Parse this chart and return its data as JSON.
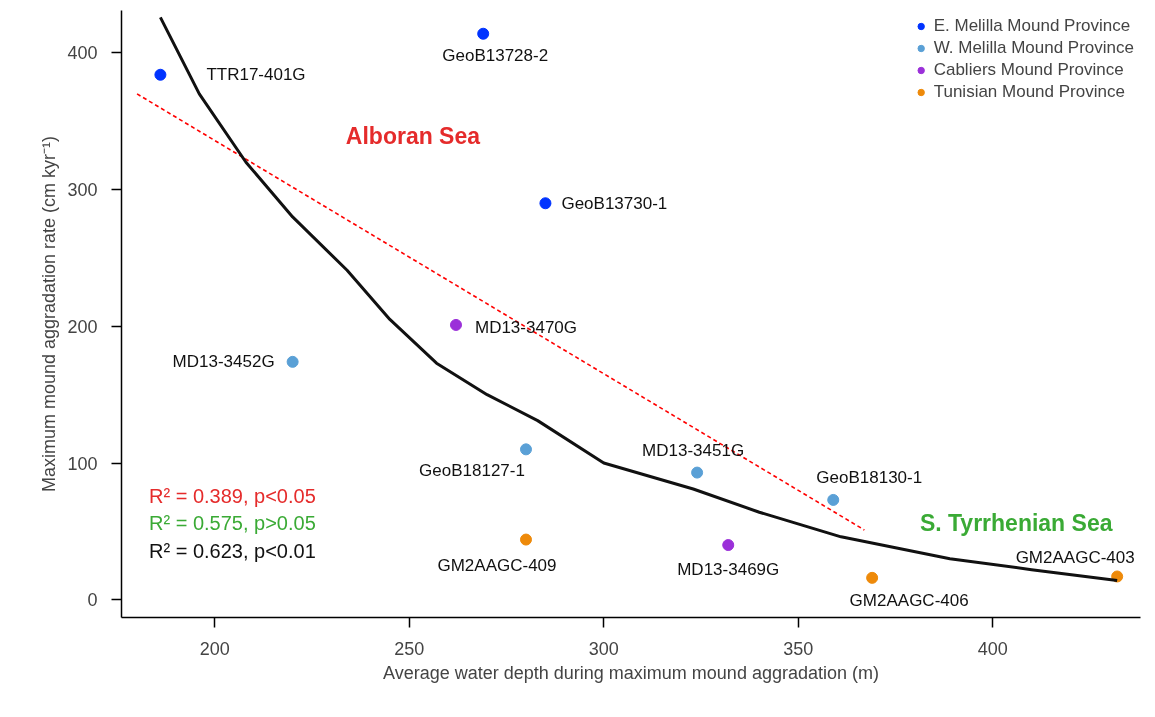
{
  "chart_data": {
    "type": "scatter",
    "xlabel": "Average water depth during maximum mound aggradation (m)",
    "ylabel": "Maximum mound aggradation rate (cm kyr⁻¹)",
    "xlim": [
      176,
      438
    ],
    "ylim": [
      -13,
      431
    ],
    "xticks": [
      200,
      250,
      300,
      350,
      400
    ],
    "yticks": [
      0,
      100,
      200,
      300,
      400
    ],
    "grid": false,
    "legend": "top right",
    "marker": "circle",
    "series": [
      {
        "name": "E. Melilla Mound Province",
        "color": "#0033ff",
        "x": [
          186,
          269,
          285
        ],
        "values": [
          384,
          414,
          290
        ]
      },
      {
        "name": "W. Melilla Mound Province",
        "color": "#5aa0d6",
        "x": [
          220,
          280,
          324,
          359
        ],
        "values": [
          174,
          110,
          93,
          73
        ]
      },
      {
        "name": "Cabliers Mound Province",
        "color": "#9b30d9",
        "x": [
          262,
          332
        ],
        "values": [
          201,
          40
        ]
      },
      {
        "name": "Tunisian Mound Province",
        "color": "#ee8a0a",
        "x": [
          280,
          369,
          432
        ],
        "values": [
          44,
          16,
          17
        ]
      },
      {
        "type": "line",
        "color": "#ff0000",
        "line_style": "dashed",
        "marker": "none",
        "x": [
          180,
          367
        ],
        "values": [
          370,
          51
        ]
      },
      {
        "type": "line",
        "color": "#111111",
        "line_style": "solid",
        "marker": "none",
        "x": [
          186,
          196,
          208,
          220,
          234,
          245,
          257,
          270,
          283,
          300,
          323,
          340,
          361,
          389,
          410,
          432
        ],
        "values": [
          426,
          370,
          320,
          280,
          241,
          205,
          173,
          150,
          131,
          100,
          81,
          64,
          46,
          30,
          22,
          14
        ]
      }
    ],
    "annotations": [
      "Alboran Sea",
      "S. Tyrrhenian Sea",
      {
        "text": "TTR17-401G",
        "x": 186,
        "y": 384
      },
      {
        "text": "GeoB13728-2",
        "x": 269,
        "y": 414
      },
      {
        "text": "GeoB13730-1",
        "x": 285,
        "y": 290
      },
      {
        "text": "MD13-3470G",
        "x": 262,
        "y": 201
      },
      {
        "text": "MD13-3452G",
        "x": 220,
        "y": 174
      },
      {
        "text": "GeoB18127-1",
        "x": 280,
        "y": 110
      },
      {
        "text": "MD13-3451G",
        "x": 324,
        "y": 93
      },
      {
        "text": "GeoB18130-1",
        "x": 359,
        "y": 73
      },
      {
        "text": "MD13-3469G",
        "x": 332,
        "y": 40
      },
      {
        "text": "GM2AAGC-409",
        "x": 280,
        "y": 44
      },
      {
        "text": "GM2AAGC-406",
        "x": 369,
        "y": 16
      },
      {
        "text": "GM2AAGC-403",
        "x": 432,
        "y": 17
      },
      "R² = 0.389, p<0.05",
      "R² = 0.575, p>0.05",
      "R² = 0.623, p<0.01"
    ]
  }
}
